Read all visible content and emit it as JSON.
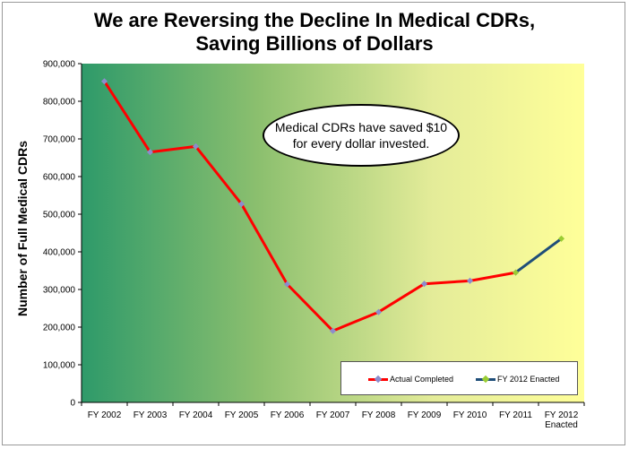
{
  "chart_data": {
    "type": "line",
    "title_lines": [
      "We are Reversing the Decline In Medical CDRs,",
      "Saving Billions of Dollars"
    ],
    "ylabel": "Number of Full Medical CDRs",
    "xlabel": "",
    "ylim": [
      0,
      900000
    ],
    "y_ticks": [
      0,
      100000,
      200000,
      300000,
      400000,
      500000,
      600000,
      700000,
      800000,
      900000
    ],
    "y_tick_labels": [
      "0",
      "100,000",
      "200,000",
      "300,000",
      "400,000",
      "500,000",
      "600,000",
      "700,000",
      "800,000",
      "900,000"
    ],
    "categories": [
      [
        "FY 2002"
      ],
      [
        "FY 2003"
      ],
      [
        "FY 2004"
      ],
      [
        "FY 2005"
      ],
      [
        "FY 2006"
      ],
      [
        "FY 2007"
      ],
      [
        "FY 2008"
      ],
      [
        "FY 2009"
      ],
      [
        "FY 2010"
      ],
      [
        "FY 2011"
      ],
      [
        "FY 2012",
        "Enacted"
      ]
    ],
    "series": [
      {
        "name": "Actual Completed",
        "color": "#ff0000",
        "marker_color": "#8c8ccc",
        "values": [
          853000,
          665000,
          680000,
          527000,
          314000,
          190000,
          240000,
          315000,
          323000,
          345000,
          null
        ]
      },
      {
        "name": "FY 2012 Enacted",
        "color": "#1f4e79",
        "marker_color": "#9acd32",
        "values": [
          null,
          null,
          null,
          null,
          null,
          null,
          null,
          null,
          null,
          345000,
          435000
        ]
      }
    ],
    "annotation": "Medical CDRs have saved $10 for every dollar invested.",
    "legend_position": "bottom-right",
    "grid": false,
    "background_gradient": [
      "#2e9a6a",
      "#8bbf6e",
      "#e4ec99",
      "#ffff99"
    ]
  }
}
